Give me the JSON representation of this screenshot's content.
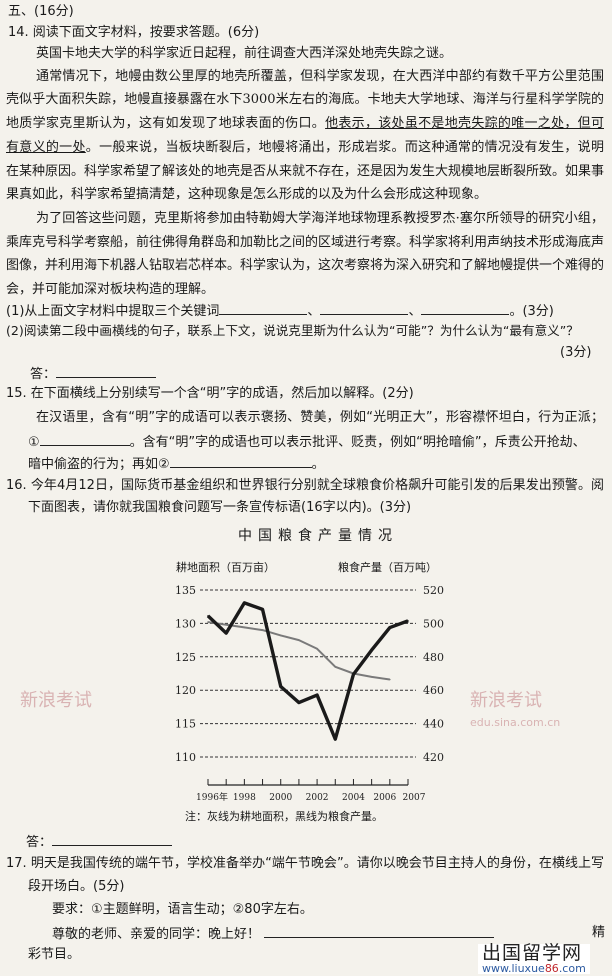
{
  "section": "五、(16分)",
  "q14": {
    "title": "14. 阅读下面文字材料，按要求答题。(6分)",
    "p1": "英国卡地夫大学的科学家近日起程，前往调查大西洋深处地壳失踪之谜。",
    "p2": [
      "通常情况下，地幔由数公里厚的地壳所覆盖，但科学家发现，在大西洋中部约有数千平方公里范围内的地",
      "壳似乎大面积失踪，地幔直接暴露在水下3000米左右的海底。卡地夫大学地球、海洋与行星科学学院的海洋",
      "地质学家克里斯认为，这有如发现了地球表面的伤口。",
      "他表示，该处虽不是地壳失踪的唯一之处，但可能是最",
      "有意义的一处",
      "。一般来说，当板块断裂后，地幔将涌出，形成岩浆。而这种通常的情况没有发生，说明一定存",
      "在某种原因。科学家希望了解该处的地壳是否从来就不存在，还是因为发生大规模地层断裂所致。如果事实",
      "果真如此，科学家希望搞清楚，这种现象是怎么形成的以及为什么会形成这种现象。"
    ],
    "p3": [
      "为了回答这些问题，克里斯将参加由特勒姆大学海洋地球物理系教授罗杰·塞尔所领导的研究小组，搭",
      "乘库克号科学考察船，前往佛得角群岛和加勒比之间的区域进行考察。科学家将利用声纳技术形成海底声纳",
      "图像，并利用海下机器人钻取岩芯样本。科学家认为，这次考察将为深入研究和了解地幔提供一个难得的机",
      "会，并可能加深对板块构造的理解。"
    ],
    "sub1": "(1)从上面文字材料中提取三个关键词",
    "sep": "、",
    "sub1_end": "。(3分)",
    "sub2": "(2)阅读第二段中画横线的句子，联系上下文，说说克里斯为什么认为“可能”？为什么认为“最有意义”？",
    "sub2_score": "(3分)",
    "answer_label": "答："
  },
  "q15": {
    "title": "15. 在下面横线上分别续写一个含“明”字的成语，然后加以解释。(2分)",
    "l1": "在汉语里，含有“明”字的成语可以表示褒扬、赞美，例如“光明正大”，形容襟怀坦白，行为正派；再如",
    "l2a": "①",
    "l2b": "。含有“明”字的成语也可以表示批评、贬责，例如“明抢暗偷”，斥责公开抢劫、",
    "l3a": "暗中偷盗的行为；再如②",
    "l3b": "。"
  },
  "q16": {
    "l1": "16. 今年4月12日，国际货币基金组织和世界银行分别就全球粮食价格飙升可能引发的后果发出预警。阅读",
    "l2": "下面图表，请你就我国粮食问题写一条宣传标语(16字以内)。(3分)",
    "answer_label": "答："
  },
  "chart_data": {
    "type": "line",
    "title": "中国粮食产量情况",
    "ylabel_left": "耕地面积（百万亩）",
    "ylabel_right": "粮食产量（百万吨）",
    "note": "注：灰线为耕地面积，黑线为粮食产量。",
    "x_tick_labels": [
      "1996年",
      "1998",
      "2000",
      "2002",
      "2004",
      "2006",
      "2007"
    ],
    "x_ticks": [
      1996,
      1998,
      2000,
      2002,
      2004,
      2006,
      2007
    ],
    "xlim": [
      1996,
      2007
    ],
    "ylim_left": [
      110,
      135
    ],
    "ylim_right": [
      420,
      520
    ],
    "y_ticks_left": [
      "135",
      "130",
      "125",
      "120",
      "115",
      "110"
    ],
    "y_ticks_right": [
      "520",
      "500",
      "480",
      "460",
      "440",
      "420"
    ],
    "grid": "dashed horizontal",
    "series": [
      {
        "axis": "left",
        "color": "#7a7a7a",
        "x": [
          1996,
          1997,
          1998,
          1999,
          2000,
          2001,
          2002,
          2003,
          2004,
          2005,
          2006
        ],
        "values": [
          130.2,
          129.8,
          129.4,
          129.0,
          128.2,
          127.5,
          126.2,
          123.5,
          122.5,
          122.0,
          121.6
        ]
      },
      {
        "axis": "right",
        "color": "#1a1a1a",
        "x": [
          1996,
          1997,
          1998,
          1999,
          2000,
          2001,
          2002,
          2003,
          2004,
          2005,
          2006,
          2007
        ],
        "values": [
          504.5,
          494.2,
          512.3,
          508.4,
          462.2,
          452.6,
          457.1,
          430.7,
          469.5,
          484.0,
          497.5,
          501.5
        ]
      }
    ]
  },
  "q17": {
    "l1": "17. 明天是我国传统的端午节，学校准备举办“端午节晚会”。请你以晚会节目主持人的身份，在横线上写一",
    "l2": "段开场白。(5分)",
    "req": "要求：①主题鲜明，语言生动；②80字左右。",
    "greet": "尊敬的老师、亲爱的同学：晚上好！",
    "tail": "精",
    "last": "彩节目。"
  },
  "watermarks": {
    "sina": "新浪考试",
    "sina_url": "edu.sina.com.cn",
    "logo": "出国留学网",
    "logo_url_a": "www.liuxue",
    "logo_url_b": "86",
    "logo_url_c": ".com"
  }
}
